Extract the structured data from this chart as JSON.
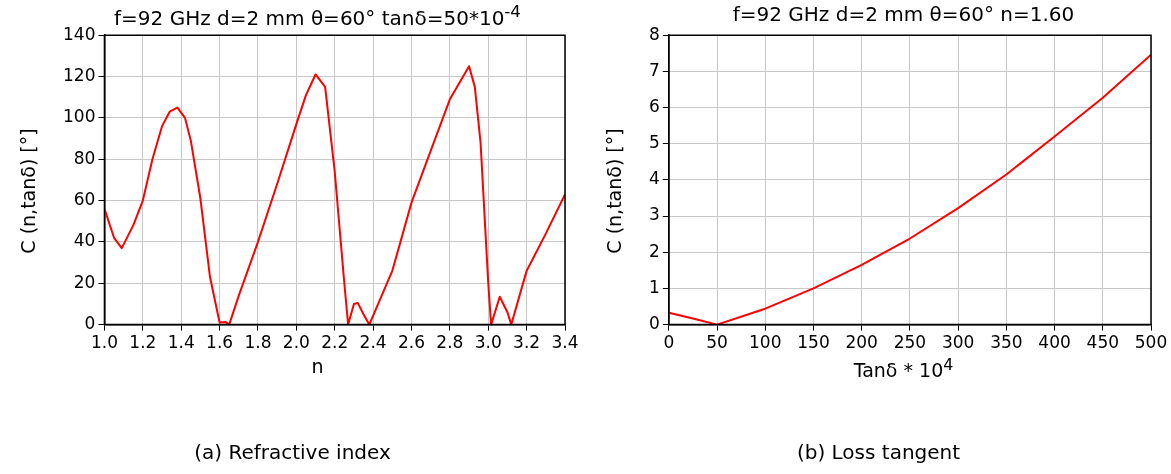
{
  "chart_data": [
    {
      "type": "line",
      "title": "f=92 GHz  d=2 mm  θ=60°  tanδ=50*10$^{-4}$",
      "xlabel": "n",
      "ylabel": "C (n,tanδ) [°]",
      "color": "#ff0000",
      "marker": "none",
      "grid": true,
      "x": [
        1.0,
        1.05,
        1.09,
        1.15,
        1.2,
        1.25,
        1.3,
        1.34,
        1.38,
        1.42,
        1.45,
        1.5,
        1.55,
        1.6,
        1.63,
        1.65,
        1.7,
        1.8,
        1.9,
        2.0,
        2.05,
        2.1,
        2.15,
        2.2,
        2.25,
        2.27,
        2.3,
        2.32,
        2.35,
        2.38,
        2.5,
        2.6,
        2.7,
        2.8,
        2.9,
        2.93,
        2.96,
        3.0,
        3.015,
        3.06,
        3.1,
        3.12,
        3.2,
        3.3,
        3.4
      ],
      "values": [
        56,
        42,
        37,
        48,
        60,
        80,
        96,
        103,
        105,
        100,
        89,
        61,
        23,
        1,
        1.3,
        0,
        14,
        40,
        68,
        97,
        111,
        121,
        115,
        74,
        20,
        0,
        10,
        10.5,
        5,
        0,
        26,
        59,
        84,
        109,
        125,
        115,
        88,
        20,
        0,
        13.5,
        6,
        0,
        26,
        44,
        63
      ],
      "xlim": [
        1.0,
        3.4
      ],
      "ylim": [
        0,
        140
      ],
      "xticks": [
        {
          "value": 1,
          "label": "1.0"
        },
        1.2,
        1.4,
        1.6,
        1.8,
        {
          "value": 2,
          "label": "2.0"
        },
        2.2,
        2.4,
        2.6,
        2.8,
        {
          "value": 3,
          "label": "3.0"
        },
        3.2,
        3.4
      ],
      "yticks": [
        0,
        20,
        40,
        60,
        80,
        100,
        120,
        140
      ],
      "annotations": [
        "(a) Refractive index"
      ]
    },
    {
      "type": "line",
      "title": "f=92 GHz  d=2 mm  θ=60°  n=1.60",
      "xlabel": "Tanδ * 10$^{4}$",
      "ylabel": "C (n,tanδ) [°]",
      "color": "#ff0000",
      "marker": "none",
      "grid": true,
      "x": [
        0,
        25,
        50,
        100,
        150,
        200,
        250,
        300,
        350,
        400,
        450,
        500
      ],
      "values": [
        0.33,
        0.17,
        0,
        0.44,
        1.0,
        1.65,
        2.38,
        3.22,
        4.15,
        5.2,
        6.27,
        7.46
      ],
      "xlim": [
        0,
        500
      ],
      "ylim": [
        0,
        8
      ],
      "xticks": [
        0,
        50,
        100,
        150,
        200,
        250,
        300,
        350,
        400,
        450,
        500
      ],
      "yticks": [
        0,
        1,
        2,
        3,
        4,
        5,
        6,
        7,
        8
      ],
      "annotations": [
        "(b) Loss tangent"
      ]
    }
  ]
}
